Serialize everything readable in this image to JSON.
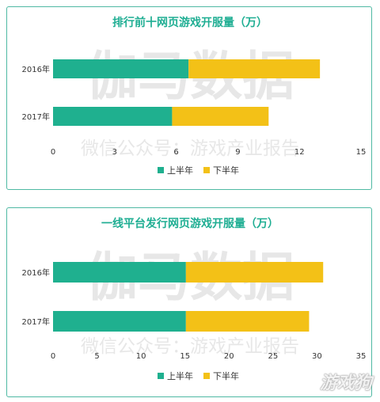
{
  "watermark": {
    "main": "伽马数据",
    "sub": "微信公众号：游戏产业报告",
    "corner": "游戏狗"
  },
  "colors": {
    "first_half": "#1fb08f",
    "second_half": "#f3c117",
    "title": "#1fae93",
    "border": "#4fb9a3"
  },
  "chart_data": [
    {
      "type": "bar",
      "orientation": "horizontal",
      "stacked": true,
      "title": "排行前十网页游戏开服量（万）",
      "categories": [
        "2016年",
        "2017年"
      ],
      "series": [
        {
          "name": "上半年",
          "values": [
            6.6,
            5.8
          ]
        },
        {
          "name": "下半年",
          "values": [
            6.4,
            4.7
          ]
        }
      ],
      "xticks": [
        "0",
        "3",
        "6",
        "9",
        "12",
        "15"
      ],
      "xlim": [
        0,
        15
      ],
      "legend_position": "bottom",
      "grid": false
    },
    {
      "type": "bar",
      "orientation": "horizontal",
      "stacked": true,
      "title": "一线平台发行网页游戏开服量（万）",
      "categories": [
        "2016年",
        "2017年"
      ],
      "series": [
        {
          "name": "上半年",
          "values": [
            15.1,
            15.1
          ]
        },
        {
          "name": "下半年",
          "values": [
            15.6,
            14.0
          ]
        }
      ],
      "xticks": [
        "0",
        "5",
        "10",
        "15",
        "20",
        "25",
        "30",
        "35"
      ],
      "xlim": [
        0,
        35
      ],
      "legend_position": "bottom",
      "grid": false
    }
  ]
}
